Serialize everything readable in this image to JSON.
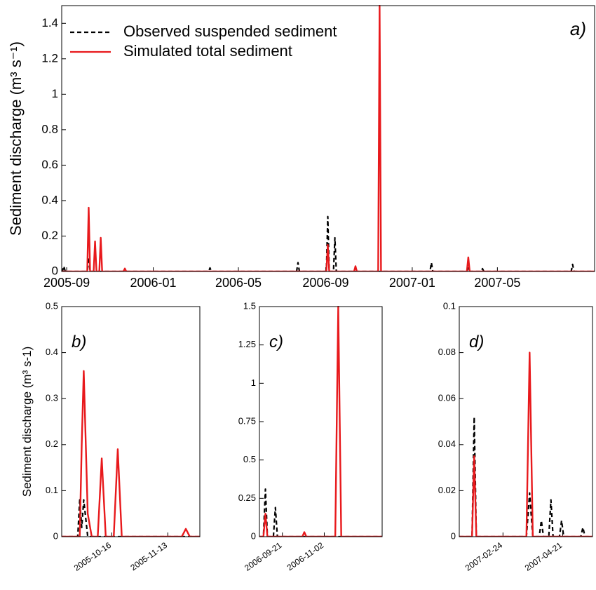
{
  "chart_data": [
    {
      "type": "line",
      "label": "a)",
      "ylabel": "Sediment discharge (m³ s⁻¹)",
      "legend": "upper left",
      "xlim": [
        "2005-08-25",
        "2007-09-15"
      ],
      "ylim": [
        0,
        1.5
      ],
      "xticks": [
        {
          "value": "2005-09-01",
          "label": "2005-09"
        },
        {
          "value": "2006-01-01",
          "label": "2006-01"
        },
        {
          "value": "2006-05-01",
          "label": "2006-05"
        },
        {
          "value": "2006-09-01",
          "label": "2006-09"
        },
        {
          "value": "2007-01-01",
          "label": "2007-01"
        },
        {
          "value": "2007-05-01",
          "label": "2007-05"
        }
      ],
      "yticks": [
        0,
        0.2,
        0.4,
        0.6,
        0.8,
        1,
        1.2,
        1.4
      ],
      "x": [
        "2005-08-25",
        "2005-08-26",
        "2005-08-28",
        "2005-08-30",
        "2005-09-30",
        "2005-10-02",
        "2005-10-04",
        "2005-10-09",
        "2005-10-11",
        "2005-10-13",
        "2005-10-17",
        "2005-10-19",
        "2005-10-21",
        "2005-11-20",
        "2005-11-22",
        "2005-11-24",
        "2006-03-20",
        "2006-03-22",
        "2006-03-24",
        "2006-07-22",
        "2006-07-24",
        "2006-07-26",
        "2006-09-02",
        "2006-09-04",
        "2006-09-06",
        "2006-09-12",
        "2006-09-14",
        "2006-09-16",
        "2006-10-11",
        "2006-10-13",
        "2006-10-15",
        "2006-11-14",
        "2006-11-16",
        "2006-11-18",
        "2007-01-26",
        "2007-01-28",
        "2007-01-30",
        "2007-03-19",
        "2007-03-21",
        "2007-03-23",
        "2007-04-08",
        "2007-04-10",
        "2007-04-12",
        "2007-08-13",
        "2007-08-15",
        "2007-08-17",
        "2007-09-15"
      ],
      "series": [
        {
          "name": "Observed suspended sediment",
          "color": "#000000",
          "dashed": true,
          "values": [
            0,
            0,
            0.03,
            0,
            0,
            0.08,
            0,
            0,
            0,
            0,
            0,
            0,
            0,
            0,
            0,
            0,
            0,
            0.02,
            0,
            0,
            0.05,
            0,
            0,
            0.31,
            0,
            0,
            0.19,
            0,
            0,
            0,
            0,
            0,
            0,
            0,
            0,
            0.05,
            0,
            0,
            0.019,
            0,
            0,
            0.016,
            0,
            0,
            0.04,
            0,
            0
          ]
        },
        {
          "name": "Simulated total sediment",
          "color": "#e8191c",
          "dashed": false,
          "values": [
            0,
            0,
            0,
            0,
            0,
            0.36,
            0,
            0,
            0.17,
            0,
            0,
            0.19,
            0,
            0,
            0.017,
            0,
            0,
            0,
            0,
            0,
            0,
            0,
            0,
            0.15,
            0,
            0,
            0,
            0,
            0,
            0.03,
            0,
            0,
            1.5,
            0,
            0,
            0,
            0,
            0,
            0.08,
            0,
            0,
            0,
            0,
            0,
            0,
            0,
            0
          ]
        }
      ]
    },
    {
      "type": "line",
      "label": "b)",
      "ylabel": "Sediment discharge (m³ s-1)",
      "xlim": [
        "2005-09-21",
        "2005-11-29"
      ],
      "ylim": [
        0,
        0.5
      ],
      "xticks": [
        "2005-10-16",
        "2005-11-13"
      ],
      "yticks": [
        0,
        0.1,
        0.2,
        0.3,
        0.4,
        0.5
      ],
      "x": [
        "2005-09-21",
        "2005-09-29",
        "2005-09-30",
        "2005-10-01",
        "2005-10-02",
        "2005-10-04",
        "2005-10-06",
        "2005-10-09",
        "2005-10-11",
        "2005-10-13",
        "2005-10-17",
        "2005-10-19",
        "2005-10-21",
        "2005-11-20",
        "2005-11-22",
        "2005-11-24",
        "2005-11-29"
      ],
      "series": [
        {
          "color": "#000000",
          "dashed": true,
          "values": [
            0,
            0,
            0.08,
            0.02,
            0.08,
            0,
            0,
            0,
            0,
            0,
            0,
            0,
            0,
            0,
            0,
            0,
            0
          ]
        },
        {
          "color": "#e8191c",
          "dashed": false,
          "values": [
            0,
            0,
            0,
            0.2,
            0.36,
            0.05,
            0,
            0,
            0.17,
            0,
            0,
            0.19,
            0,
            0,
            0.017,
            0,
            0
          ]
        }
      ]
    },
    {
      "type": "line",
      "label": "c)",
      "xlim": [
        "2006-08-29",
        "2006-12-30"
      ],
      "ylim": [
        0,
        1.5
      ],
      "xticks": [
        "2006-09-21",
        "2006-11-02"
      ],
      "yticks": [
        0,
        0.25,
        0.5,
        0.75,
        1,
        1.25,
        1.5
      ],
      "x": [
        "2006-08-29",
        "2006-09-02",
        "2006-09-04",
        "2006-09-06",
        "2006-09-12",
        "2006-09-14",
        "2006-09-16",
        "2006-10-11",
        "2006-10-13",
        "2006-10-15",
        "2006-11-13",
        "2006-11-16",
        "2006-11-19",
        "2006-12-30"
      ],
      "series": [
        {
          "color": "#000000",
          "dashed": true,
          "values": [
            0,
            0,
            0.31,
            0,
            0,
            0.19,
            0,
            0,
            0,
            0,
            0,
            0,
            0,
            0
          ]
        },
        {
          "color": "#e8191c",
          "dashed": false,
          "values": [
            0,
            0,
            0.15,
            0,
            0,
            0,
            0,
            0,
            0.03,
            0,
            0,
            1.5,
            0,
            0
          ]
        }
      ]
    },
    {
      "type": "line",
      "label": "d)",
      "xlim": [
        "2007-01-14",
        "2007-05-19"
      ],
      "ylim": [
        0,
        0.1
      ],
      "xticks": [
        "2007-02-24",
        "2007-04-21"
      ],
      "yticks": [
        0,
        0.02,
        0.04,
        0.06,
        0.08,
        0.1
      ],
      "x": [
        "2007-01-14",
        "2007-01-26",
        "2007-01-28",
        "2007-01-30",
        "2007-03-18",
        "2007-03-21",
        "2007-03-24",
        "2007-03-30",
        "2007-04-01",
        "2007-04-03",
        "2007-04-08",
        "2007-04-10",
        "2007-04-12",
        "2007-04-18",
        "2007-04-20",
        "2007-04-22",
        "2007-05-08",
        "2007-05-10",
        "2007-05-12",
        "2007-05-19"
      ],
      "series": [
        {
          "color": "#000000",
          "dashed": true,
          "values": [
            0,
            0,
            0.052,
            0,
            0,
            0.019,
            0,
            0,
            0.007,
            0,
            0,
            0.016,
            0,
            0,
            0.007,
            0,
            0,
            0.004,
            0,
            0
          ]
        },
        {
          "color": "#e8191c",
          "dashed": false,
          "values": [
            0,
            0,
            0.035,
            0,
            0,
            0.08,
            0,
            0,
            0,
            0,
            0,
            0,
            0,
            0,
            0,
            0,
            0,
            0,
            0,
            0
          ]
        }
      ]
    }
  ]
}
